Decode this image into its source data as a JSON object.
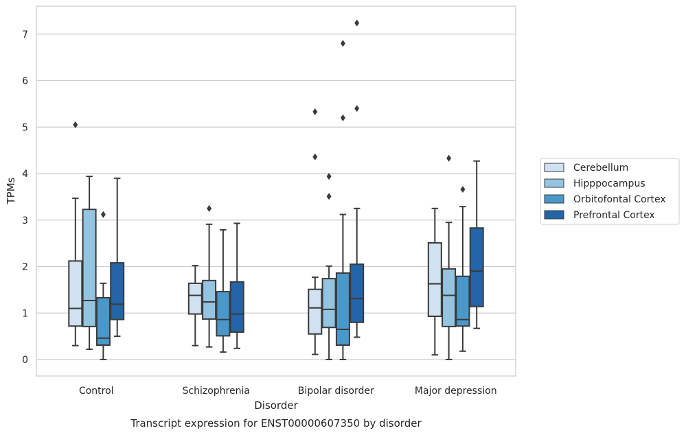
{
  "chart_data": {
    "type": "box",
    "title": "Transcript expression for ENST00000607350 by disorder",
    "xlabel": "Disorder",
    "ylabel": "TPMs",
    "ylim": [
      -0.35,
      7.6
    ],
    "yticks": [
      0,
      1,
      2,
      3,
      4,
      5,
      6,
      7
    ],
    "grid": "horizontal",
    "legend_position": "right",
    "categories": [
      "Control",
      "Schizophrenia",
      "Bipolar disorder",
      "Major depression"
    ],
    "series": [
      {
        "name": "Cerebellum",
        "color": "#d0e1f2",
        "boxes": [
          {
            "whisker_low": 0.3,
            "q1": 0.72,
            "median": 1.1,
            "q3": 2.12,
            "whisker_high": 3.47,
            "outliers": [
              5.05
            ]
          },
          {
            "whisker_low": 0.3,
            "q1": 0.98,
            "median": 1.38,
            "q3": 1.64,
            "whisker_high": 2.02,
            "outliers": []
          },
          {
            "whisker_low": 0.11,
            "q1": 0.55,
            "median": 1.11,
            "q3": 1.51,
            "whisker_high": 1.77,
            "outliers": [
              5.33,
              4.36
            ]
          },
          {
            "whisker_low": 0.1,
            "q1": 0.93,
            "median": 1.63,
            "q3": 2.51,
            "whisker_high": 3.25,
            "outliers": []
          }
        ]
      },
      {
        "name": "Hipppocampus",
        "color": "#94c4df",
        "boxes": [
          {
            "whisker_low": 0.22,
            "q1": 0.71,
            "median": 1.27,
            "q3": 3.23,
            "whisker_high": 3.94,
            "outliers": []
          },
          {
            "whisker_low": 0.27,
            "q1": 0.87,
            "median": 1.24,
            "q3": 1.7,
            "whisker_high": 2.91,
            "outliers": [
              3.25
            ]
          },
          {
            "whisker_low": 0.0,
            "q1": 0.69,
            "median": 1.08,
            "q3": 1.74,
            "whisker_high": 2.01,
            "outliers": [
              3.94,
              3.51
            ]
          },
          {
            "whisker_low": 0.0,
            "q1": 0.71,
            "median": 1.38,
            "q3": 1.95,
            "whisker_high": 2.95,
            "outliers": [
              4.33
            ]
          }
        ]
      },
      {
        "name": "Orbitofontal Cortex",
        "color": "#4a98c9",
        "boxes": [
          {
            "whisker_low": 0.0,
            "q1": 0.31,
            "median": 0.46,
            "q3": 1.33,
            "whisker_high": 1.64,
            "outliers": [
              3.12
            ]
          },
          {
            "whisker_low": 0.16,
            "q1": 0.51,
            "median": 0.86,
            "q3": 1.46,
            "whisker_high": 2.79,
            "outliers": []
          },
          {
            "whisker_low": 0.0,
            "q1": 0.31,
            "median": 0.65,
            "q3": 1.86,
            "whisker_high": 3.12,
            "outliers": [
              6.8,
              5.2
            ]
          },
          {
            "whisker_low": 0.18,
            "q1": 0.72,
            "median": 0.86,
            "q3": 1.79,
            "whisker_high": 3.29,
            "outliers": [
              3.66
            ]
          }
        ]
      },
      {
        "name": "Prefrontal Cortex",
        "color": "#2365a8",
        "boxes": [
          {
            "whisker_low": 0.5,
            "q1": 0.86,
            "median": 1.19,
            "q3": 2.08,
            "whisker_high": 3.9,
            "outliers": []
          },
          {
            "whisker_low": 0.24,
            "q1": 0.59,
            "median": 0.98,
            "q3": 1.67,
            "whisker_high": 2.93,
            "outliers": []
          },
          {
            "whisker_low": 0.48,
            "q1": 0.8,
            "median": 1.31,
            "q3": 2.05,
            "whisker_high": 3.25,
            "outliers": [
              7.24,
              5.4
            ]
          },
          {
            "whisker_low": 0.67,
            "q1": 1.14,
            "median": 1.9,
            "q3": 2.83,
            "whisker_high": 4.27,
            "outliers": []
          }
        ]
      }
    ]
  }
}
